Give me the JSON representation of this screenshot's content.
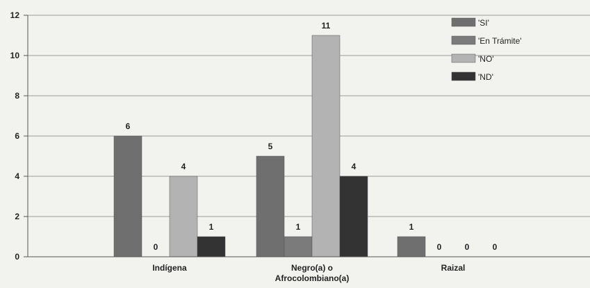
{
  "chart_data": {
    "type": "bar",
    "categories": [
      "Indígena",
      "Negro(a) o\nAfrocolombiano(a)",
      "Raizal"
    ],
    "series": [
      {
        "name": "'SI'",
        "values": [
          6,
          5,
          1
        ],
        "color": "#6f6f6f"
      },
      {
        "name": "'En Trámite'",
        "values": [
          0,
          1,
          0
        ],
        "color": "#7b7b7b"
      },
      {
        "name": "'NO'",
        "values": [
          4,
          11,
          0
        ],
        "color": "#b3b3b3"
      },
      {
        "name": "'ND'",
        "values": [
          1,
          4,
          0
        ],
        "color": "#333333"
      }
    ],
    "ylim": [
      0,
      12
    ],
    "yticks": [
      0,
      2,
      4,
      6,
      8,
      10,
      12
    ],
    "grid": true,
    "legend": "top-right",
    "title": "",
    "xlabel": "",
    "ylabel": ""
  }
}
